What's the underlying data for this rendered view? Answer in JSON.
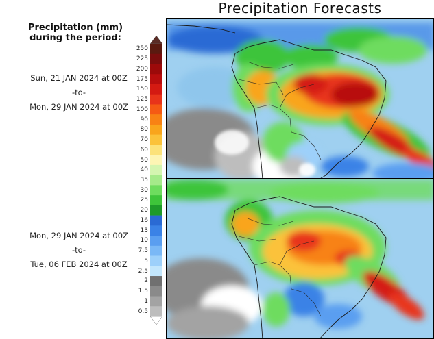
{
  "title": "Precipitation Forecasts",
  "legend": {
    "title_line1": "Precipitation (mm)",
    "title_line2": "during the period:"
  },
  "periods": [
    {
      "start": "Sun, 21 JAN 2024 at 00Z",
      "sep": "-to-",
      "end": "Mon, 29 JAN 2024 at 00Z"
    },
    {
      "start": "Mon, 29 JAN 2024 at 00Z",
      "sep": "-to-",
      "end": "Tue, 06 FEB 2024 at 00Z"
    }
  ],
  "colorbar": {
    "levels": [
      "250",
      "225",
      "200",
      "175",
      "150",
      "125",
      "100",
      "90",
      "80",
      "70",
      "60",
      "50",
      "40",
      "35",
      "30",
      "25",
      "20",
      "16",
      "13",
      "10",
      "7.5",
      "5",
      "2.5",
      "2",
      "1.5",
      "1",
      "0.5"
    ],
    "colors": [
      "#5a1a10",
      "#7a0d0d",
      "#9c0a0a",
      "#b80e0e",
      "#d41a12",
      "#e8341a",
      "#f55a14",
      "#f88214",
      "#f9a51c",
      "#fbc23a",
      "#fce27a",
      "#fdf5b4",
      "#d4f5b0",
      "#a5ea8a",
      "#6edc5e",
      "#3ec43a",
      "#1e9a2a",
      "#2a6ad4",
      "#3b82e6",
      "#5a9ef0",
      "#7ab8f6",
      "#9dd0fa",
      "#c2e6fc",
      "#707070",
      "#8a8a8a",
      "#a3a3a3",
      "#bdbdbd"
    ],
    "top_color": "#5a2b25",
    "bottom_color": "#ffffff"
  },
  "map": {
    "ocean_color": "#9fd0f0",
    "dry_color": "#ffffff"
  }
}
